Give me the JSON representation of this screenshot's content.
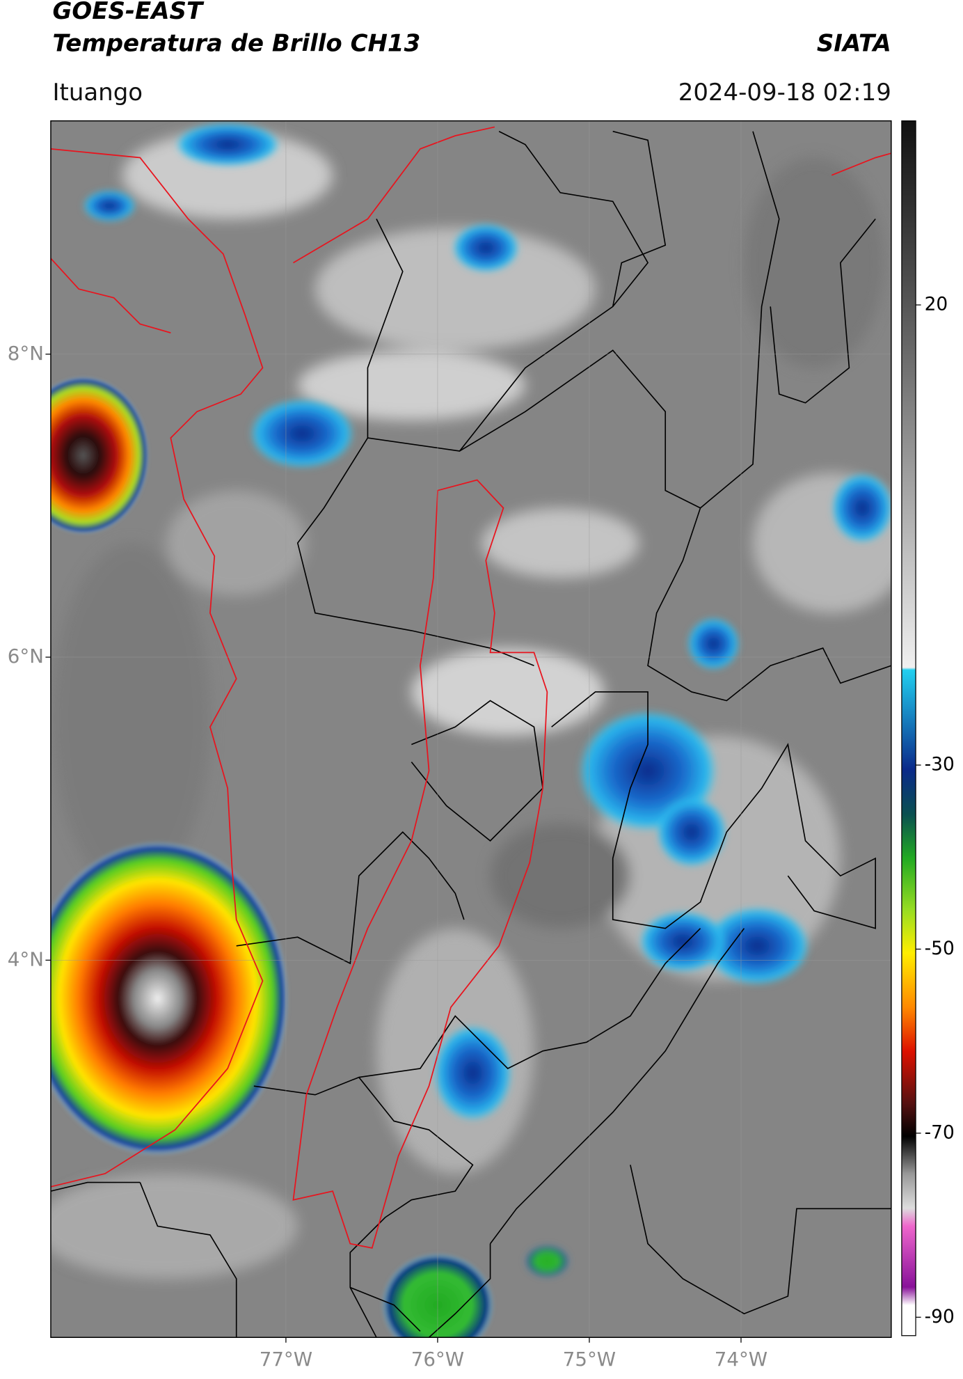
{
  "header": {
    "title": "GOES-EAST",
    "subtitle": "Temperatura de Brillo CH13",
    "brand": "SIATA",
    "location": "Ituango",
    "datetime": "2024-09-18 02:19"
  },
  "map": {
    "xlim": [
      -78.55,
      -73.01
    ],
    "ylim": [
      1.51,
      9.54
    ],
    "xticks": [
      {
        "value": -77,
        "label": "77°W"
      },
      {
        "value": -76,
        "label": "76°W"
      },
      {
        "value": -75,
        "label": "75°W"
      },
      {
        "value": -74,
        "label": "74°W"
      }
    ],
    "yticks": [
      {
        "value": 8,
        "label": "8°N"
      },
      {
        "value": 6,
        "label": "6°N"
      },
      {
        "value": 4,
        "label": "4°N"
      }
    ]
  },
  "colorbar": {
    "lim": [
      -92,
      40
    ],
    "ticks": [
      20,
      -30,
      -50,
      -70,
      -90
    ]
  }
}
